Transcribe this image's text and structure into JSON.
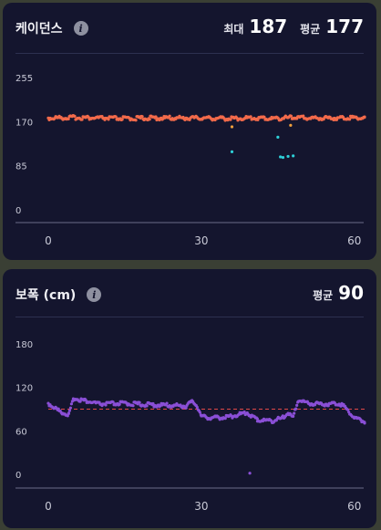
{
  "cadence": {
    "title": "케이던스",
    "max_label": "최대",
    "max_value": "187",
    "avg_label": "평균",
    "avg_value": "177"
  },
  "stride": {
    "title": "보폭 (cm)",
    "avg_label": "평균",
    "avg_value": "90"
  },
  "colors": {
    "cadence_main": "#f26a4b",
    "cadence_low": "#2ed0d8",
    "cadence_mid": "#f0a03c",
    "stride_main": "#8a4fd6",
    "stride_avg_line": "#e04848"
  },
  "chart_data": [
    {
      "type": "scatter",
      "ylim": [
        0,
        255
      ],
      "xlim": [
        0,
        62
      ],
      "y_ticks": [
        "255",
        "170",
        "85",
        "0"
      ],
      "x_ticks": [
        "0",
        "30",
        "60"
      ],
      "series": [
        {
          "values": [
            [
              0,
              177
            ],
            [
              5,
              178
            ],
            [
              10,
              177
            ],
            [
              15,
              176
            ],
            [
              20,
              177
            ],
            [
              25,
              177
            ],
            [
              30,
              177
            ],
            [
              35,
              176
            ],
            [
              40,
              177
            ],
            [
              44,
              176
            ],
            [
              48,
              178
            ],
            [
              52,
              177
            ],
            [
              56,
              177
            ],
            [
              60,
              178
            ],
            [
              62,
              177
            ]
          ]
        },
        {
          "values": [
            [
              36,
              112
            ],
            [
              45,
              140
            ],
            [
              45.5,
              102
            ],
            [
              46,
              101
            ],
            [
              47,
              103
            ],
            [
              48,
              104
            ]
          ]
        },
        {
          "values": [
            [
              36,
              160
            ],
            [
              47.5,
              163
            ]
          ]
        }
      ]
    },
    {
      "type": "scatter",
      "ylim": [
        0,
        180
      ],
      "xlim": [
        0,
        62
      ],
      "y_ticks": [
        "180",
        "120",
        "60",
        "0"
      ],
      "x_ticks": [
        "0",
        "30",
        "60"
      ],
      "average": 90,
      "series": [
        {
          "values": [
            [
              0,
              98
            ],
            [
              2,
              88
            ],
            [
              4,
              82
            ],
            [
              5,
              105
            ],
            [
              7,
              102
            ],
            [
              10,
              97
            ],
            [
              15,
              98
            ],
            [
              20,
              96
            ],
            [
              25,
              95
            ],
            [
              27,
              94
            ],
            [
              28,
              100
            ],
            [
              29,
              97
            ],
            [
              30,
              80
            ],
            [
              32,
              78
            ],
            [
              35,
              79
            ],
            [
              37,
              82
            ],
            [
              39,
              85
            ],
            [
              41,
              75
            ],
            [
              44,
              74
            ],
            [
              46,
              78
            ],
            [
              47,
              85
            ],
            [
              48,
              78
            ],
            [
              49,
              103
            ],
            [
              51,
              98
            ],
            [
              54,
              97
            ],
            [
              57,
              98
            ],
            [
              58,
              94
            ],
            [
              60,
              78
            ],
            [
              62,
              73
            ],
            [
              39.5,
              3
            ]
          ]
        }
      ]
    }
  ]
}
